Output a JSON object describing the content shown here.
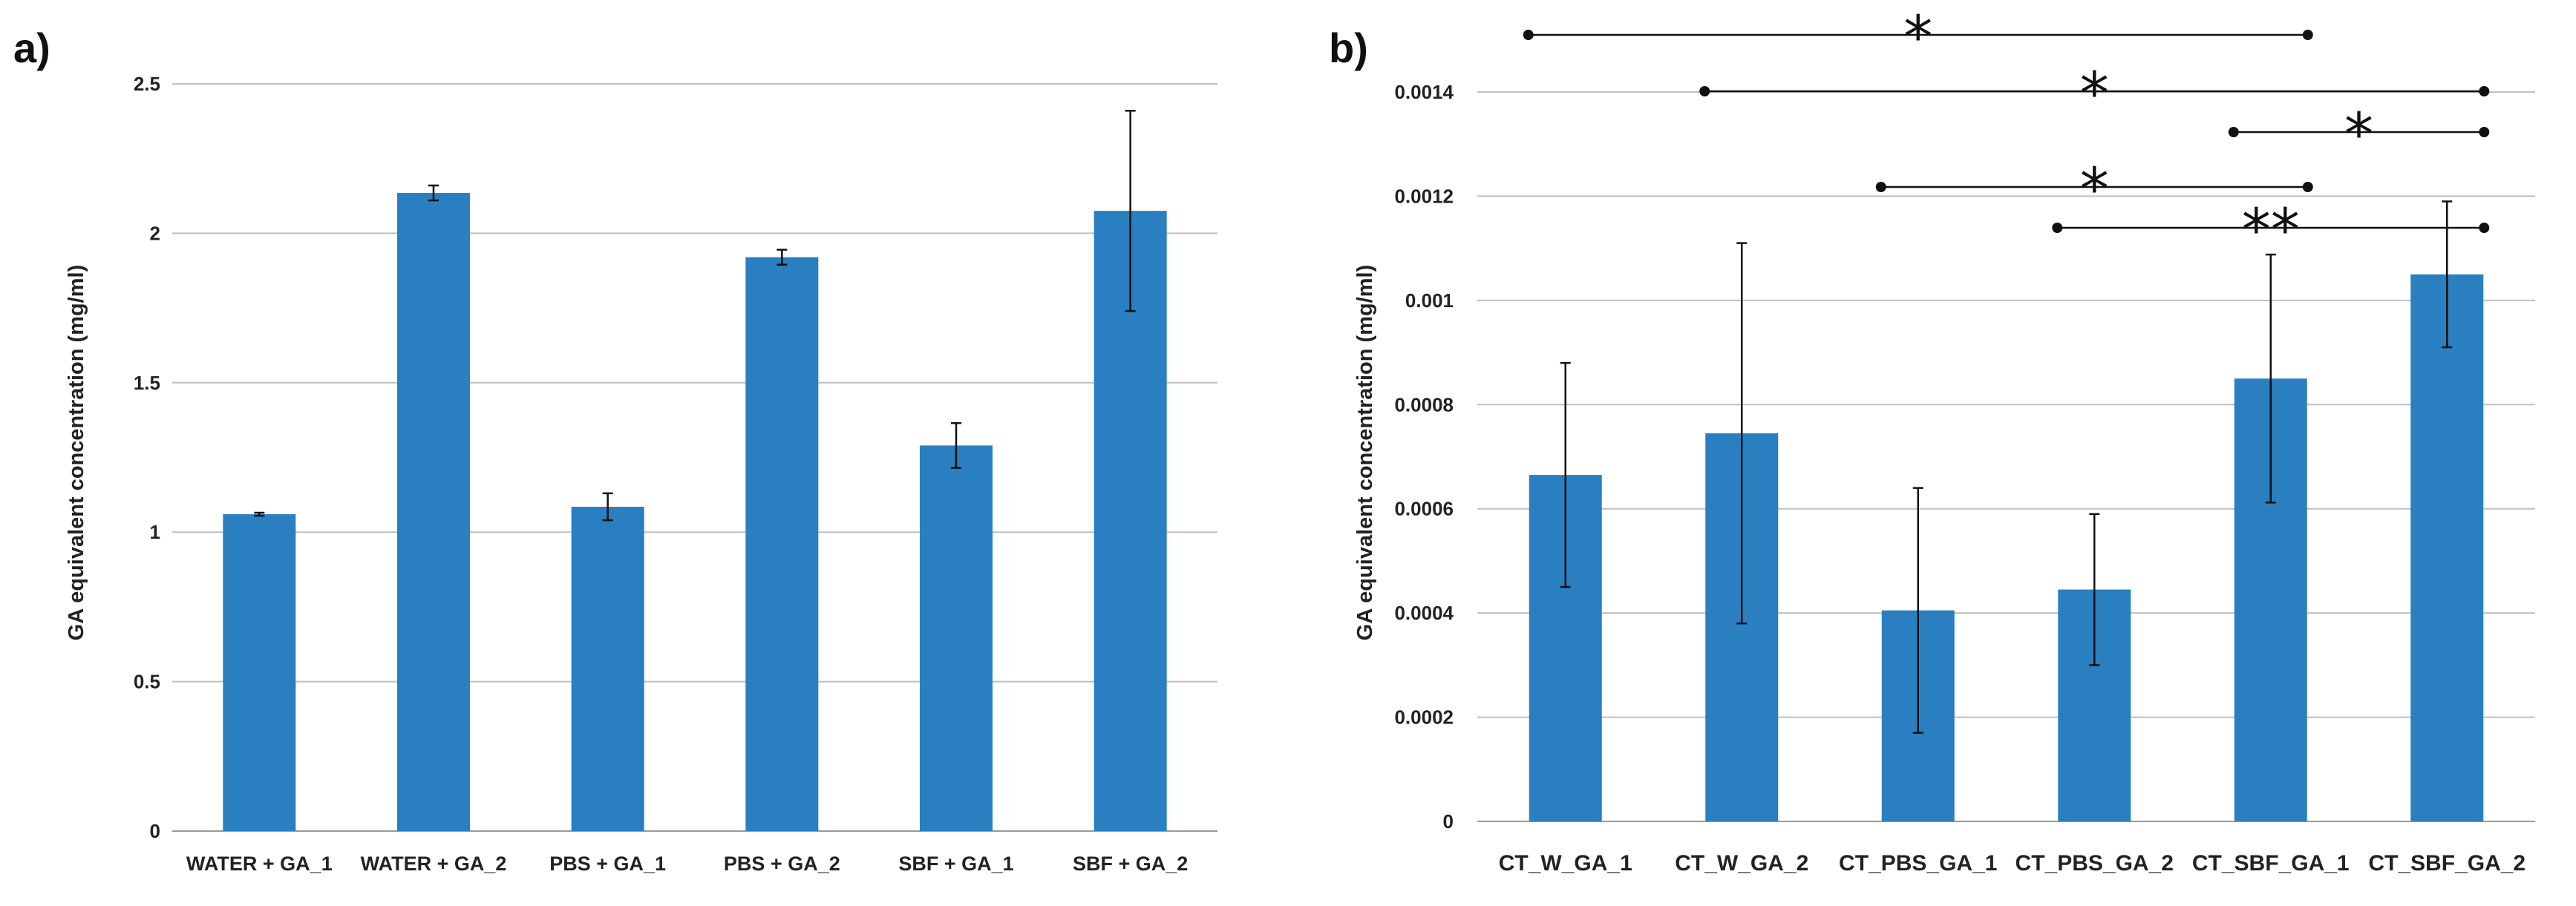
{
  "chart_data": [
    {
      "panel": "a)",
      "type": "bar",
      "title": "",
      "xlabel": "",
      "ylabel": "GA equivalent concentration (mg/ml)",
      "ylim": [
        0,
        2.5
      ],
      "yticks": [
        0,
        0.5,
        1,
        1.5,
        2,
        2.5
      ],
      "ytick_labels": [
        "0",
        "0.5",
        "1",
        "1.5",
        "2",
        "2.5"
      ],
      "grid": true,
      "bar_color": "#2a7fc1",
      "categories": [
        "WATER + GA_1",
        "WATER + GA_2",
        "PBS + GA_1",
        "PBS + GA_2",
        "SBF + GA_1",
        "SBF + GA_2"
      ],
      "values": [
        1.06,
        2.135,
        1.085,
        1.92,
        1.29,
        2.075
      ],
      "errors": [
        0.005,
        0.025,
        0.045,
        0.025,
        0.075,
        0.335
      ]
    },
    {
      "panel": "b)",
      "type": "bar",
      "title": "",
      "xlabel": "",
      "ylabel": "GA equivalent concentration (mg/ml)",
      "ylim": [
        0,
        0.0014
      ],
      "yticks": [
        0,
        0.0002,
        0.0004,
        0.0006,
        0.0008,
        0.001,
        0.0012,
        0.0014
      ],
      "ytick_labels": [
        "0",
        "0.0002",
        "0.0004",
        "0.0006",
        "0.0008",
        "0.001",
        "0.0012",
        "0.0014"
      ],
      "grid": true,
      "bar_color": "#2a7fc1",
      "categories": [
        "CT_W_GA_1",
        "CT_W_GA_2",
        "CT_PBS_GA_1",
        "CT_PBS_GA_2",
        "CT_SBF_GA_1",
        "CT_SBF_GA_2"
      ],
      "values": [
        0.000665,
        0.000745,
        0.000405,
        0.000445,
        0.00085,
        0.00105
      ],
      "errors": [
        0.000215,
        0.000365,
        0.000235,
        0.000145,
        0.000238,
        0.00014
      ],
      "significance": [
        {
          "from": 0,
          "to": 4,
          "label": "*"
        },
        {
          "from": 1,
          "to": 5,
          "label": "*"
        },
        {
          "from": 4,
          "to": 5,
          "label": "*"
        },
        {
          "from": 2,
          "to": 4,
          "label": "*"
        },
        {
          "from": 3,
          "to": 5,
          "label": "**"
        }
      ]
    }
  ]
}
